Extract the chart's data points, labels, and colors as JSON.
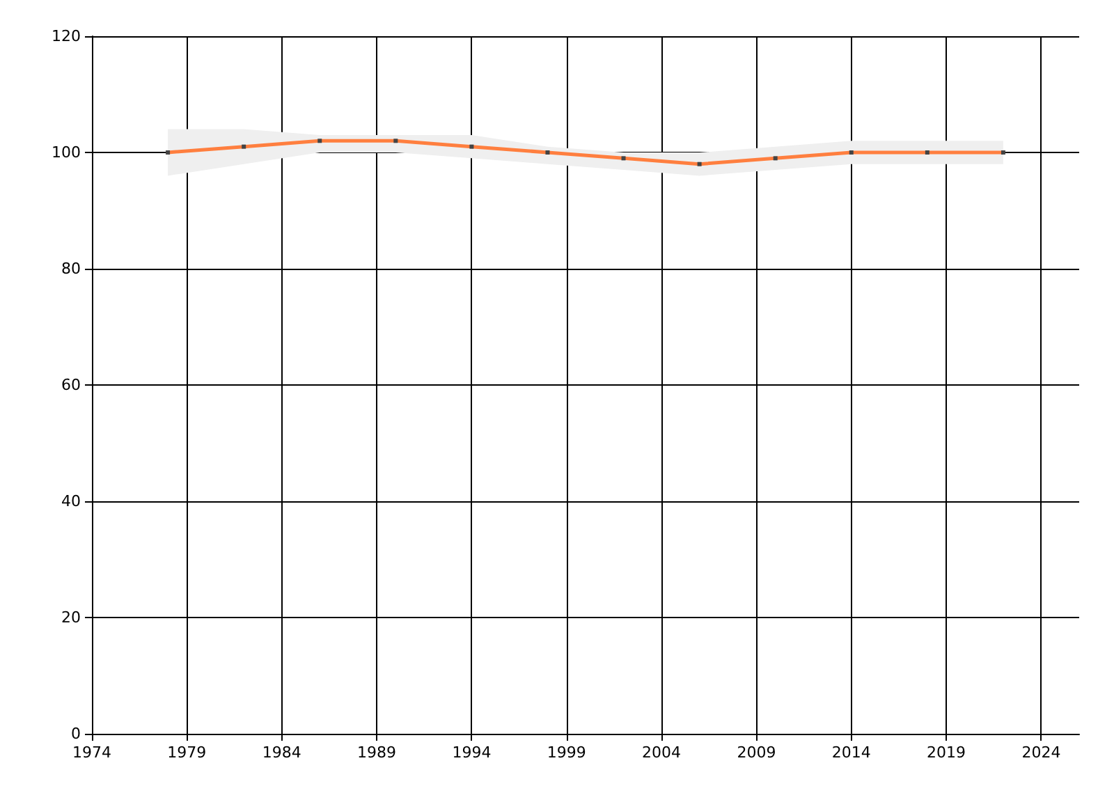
{
  "chart_data": {
    "type": "line",
    "x": [
      1978,
      1982,
      1986,
      1990,
      1994,
      1998,
      2002,
      2006,
      2010,
      2014,
      2018,
      2022
    ],
    "series": [
      {
        "color": "#ff7f3f",
        "values": [
          100,
          101,
          102,
          102,
          101,
          100,
          99,
          98,
          99,
          100,
          100,
          100
        ],
        "lower": [
          96,
          98,
          100,
          100,
          99,
          98,
          97,
          96,
          97,
          98,
          98,
          98
        ],
        "upper": [
          104,
          104,
          103,
          103,
          103,
          101,
          100,
          100,
          101,
          102,
          102,
          102
        ]
      }
    ],
    "xlim": [
      1974,
      2026
    ],
    "xticks": [
      1974,
      1979,
      1984,
      1989,
      1994,
      1999,
      2004,
      2009,
      2014,
      2019,
      2024
    ],
    "ylim": [
      0,
      120
    ],
    "yticks": [
      0,
      20,
      40,
      60,
      80,
      100,
      120
    ],
    "grid": true,
    "marker": "square",
    "line_style": "solid"
  }
}
